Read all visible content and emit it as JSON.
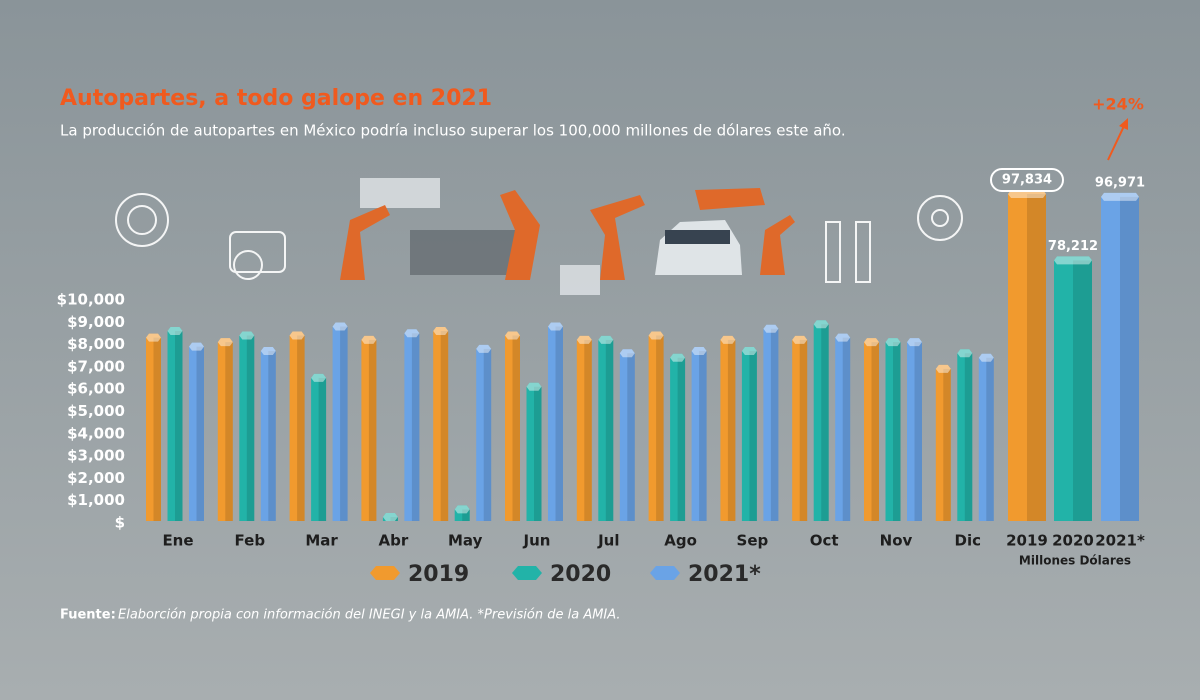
{
  "chart_data": [
    {
      "type": "bar",
      "title": "Autopartes, a todo galope en 2021",
      "subtitle": "La producción de autopartes en México podría incluso superar los 100,000 millones de dólares este año.",
      "source_label": "Fuente:",
      "source": "Elaborción propia con información del INEGI y la AMIA. *Previsión de la AMIA.",
      "categories": [
        "Ene",
        "Feb",
        "Mar",
        "Abr",
        "May",
        "Jun",
        "Jul",
        "Ago",
        "Sep",
        "Oct",
        "Nov",
        "Dic"
      ],
      "series": [
        {
          "name": "2019",
          "color": "#f19a2e",
          "values": [
            8400,
            8200,
            8500,
            8300,
            8700,
            8500,
            8300,
            8500,
            8300,
            8300,
            8200,
            7000
          ]
        },
        {
          "name": "2020",
          "color": "#22b3a8",
          "values": [
            8700,
            8500,
            6600,
            300,
            700,
            6200,
            8300,
            7500,
            7800,
            9000,
            8200,
            7700
          ]
        },
        {
          "name": "2021*",
          "color": "#6aa3e6",
          "values": [
            8000,
            7800,
            8900,
            8600,
            7900,
            8900,
            7700,
            7800,
            8800,
            8400,
            8200,
            7500
          ]
        }
      ],
      "ylim": [
        0,
        10000
      ],
      "yticks": [
        {
          "value": 0,
          "label": "$"
        },
        {
          "value": 1000,
          "label": "$1,000"
        },
        {
          "value": 2000,
          "label": "$2,000"
        },
        {
          "value": 3000,
          "label": "$3,000"
        },
        {
          "value": 4000,
          "label": "$4,000"
        },
        {
          "value": 5000,
          "label": "$5,000"
        },
        {
          "value": 6000,
          "label": "$6,000"
        },
        {
          "value": 7000,
          "label": "$7,000"
        },
        {
          "value": 8000,
          "label": "$8,000"
        },
        {
          "value": 9000,
          "label": "$9,000"
        },
        {
          "value": 10000,
          "label": "$10,000"
        }
      ],
      "legend": "bottom"
    },
    {
      "type": "bar",
      "categories": [
        "2019",
        "2020",
        "2021*"
      ],
      "values": [
        97834,
        78212,
        96971
      ],
      "value_labels": [
        "97,834",
        "78,212",
        "96,971"
      ],
      "colors": [
        "#f19a2e",
        "#22b3a8",
        "#6aa3e6"
      ],
      "axis_label": "Millones Dólares",
      "annotation": "+24%"
    }
  ]
}
